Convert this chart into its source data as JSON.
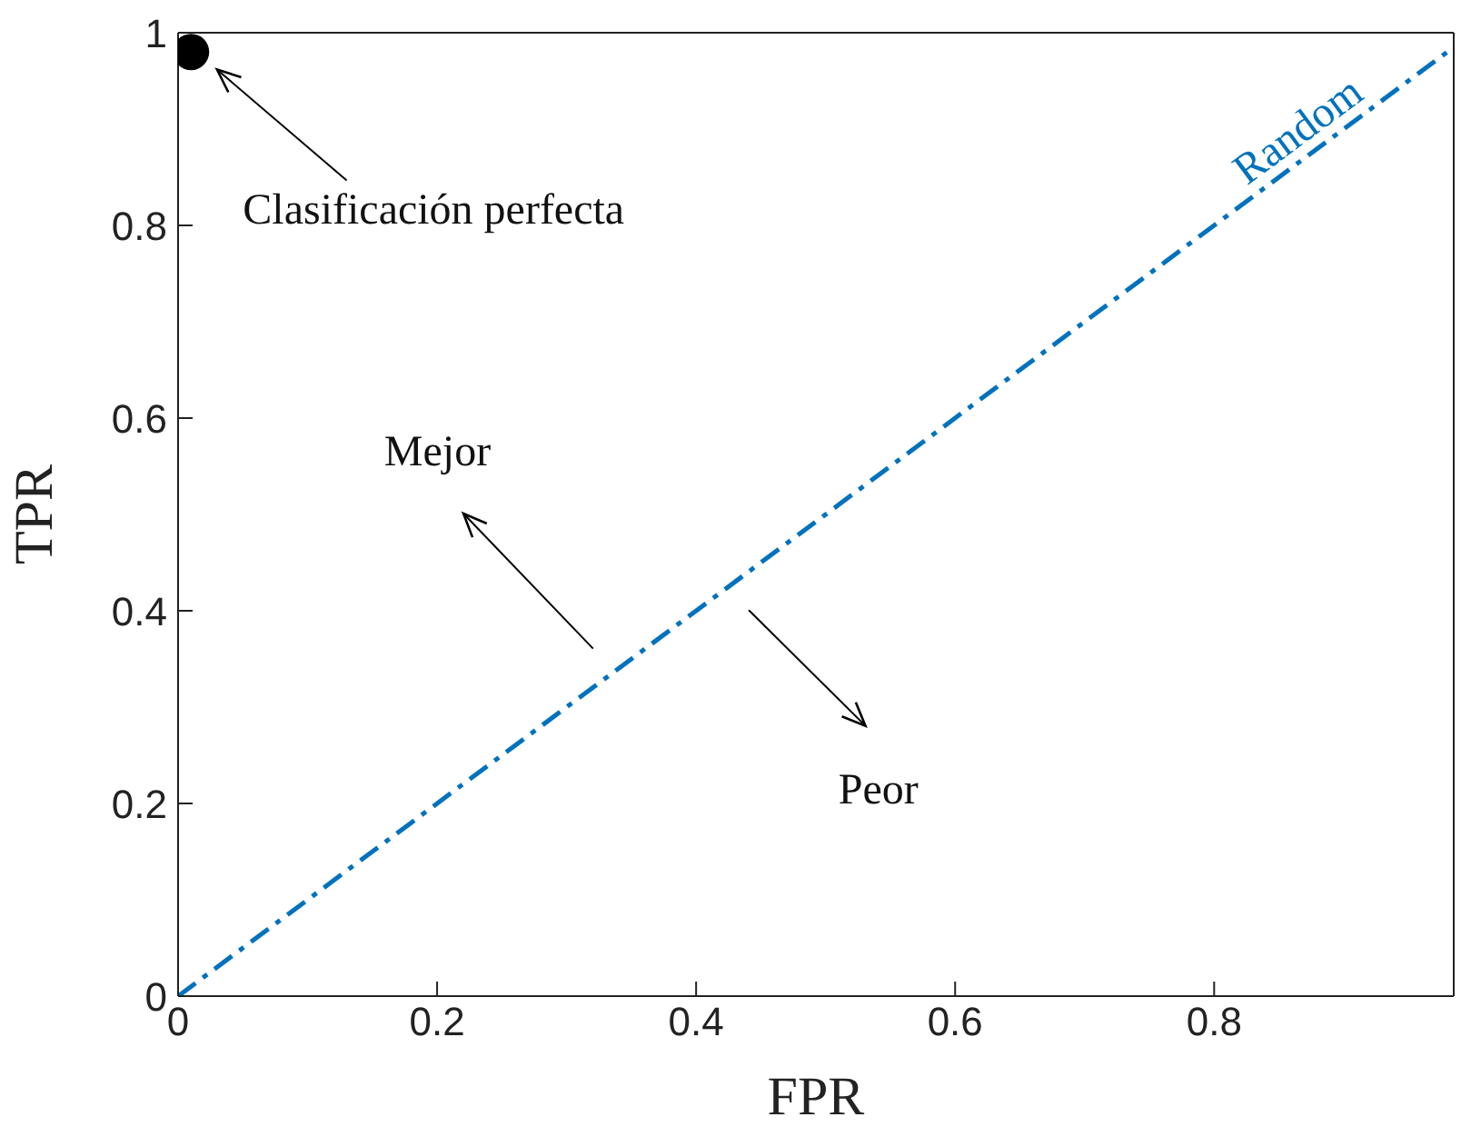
{
  "chart_data": {
    "type": "line",
    "xlabel": "FPR",
    "ylabel": "TPR",
    "xlim": [
      0,
      0.985
    ],
    "xticks": [
      0,
      0.2,
      0.4,
      0.6,
      0.8
    ],
    "ylim": [
      0,
      1
    ],
    "yticks": [
      0,
      0.2,
      0.4,
      0.6,
      0.8,
      1
    ],
    "grid": false,
    "series": [
      {
        "color": "#0072bd",
        "x": [
          0,
          0.985
        ],
        "values": [
          0,
          0.985
        ],
        "line_style": "dashed",
        "marker": "none"
      },
      {
        "type": "scatter",
        "color": "#000000",
        "x": [
          0.01
        ],
        "values": [
          0.98
        ],
        "marker": "circle"
      }
    ],
    "annotations": [
      "Clasificación perfecta",
      "Mejor",
      "Peor",
      {
        "text": "Random",
        "x": 0.87,
        "y": 0.87
      }
    ]
  }
}
